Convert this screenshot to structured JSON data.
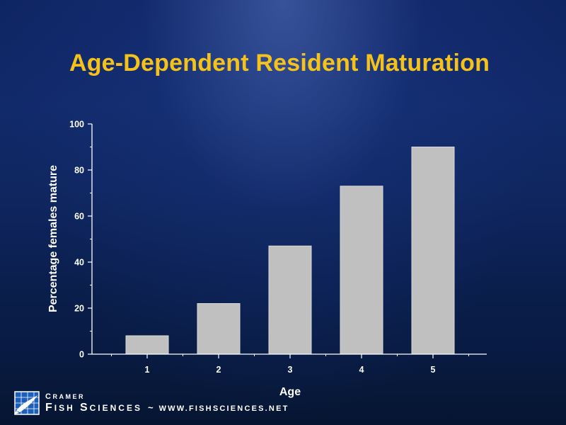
{
  "slide": {
    "title": "Age-Dependent Resident Maturation"
  },
  "chart_data": {
    "type": "bar",
    "categories": [
      "1",
      "2",
      "3",
      "4",
      "5"
    ],
    "values": [
      8,
      22,
      47,
      73,
      90
    ],
    "title": "",
    "xlabel": "Age",
    "ylabel": "Percentage females mature",
    "ylim": [
      0,
      100
    ],
    "yticks": [
      "0",
      "20",
      "40",
      "60",
      "80",
      "100"
    ],
    "grid": false,
    "bar_color": "#c0c0c0",
    "axis_color": "#ffffff",
    "text_color": "#ffffff"
  },
  "footer": {
    "brand_top": "Cramer",
    "brand_main": "Fish Sciences",
    "separator": "~",
    "url": "www.fishsciences.net"
  },
  "colors": {
    "title": "#f5c21b",
    "background_top": "#0f2563",
    "background_bottom": "#061531"
  }
}
